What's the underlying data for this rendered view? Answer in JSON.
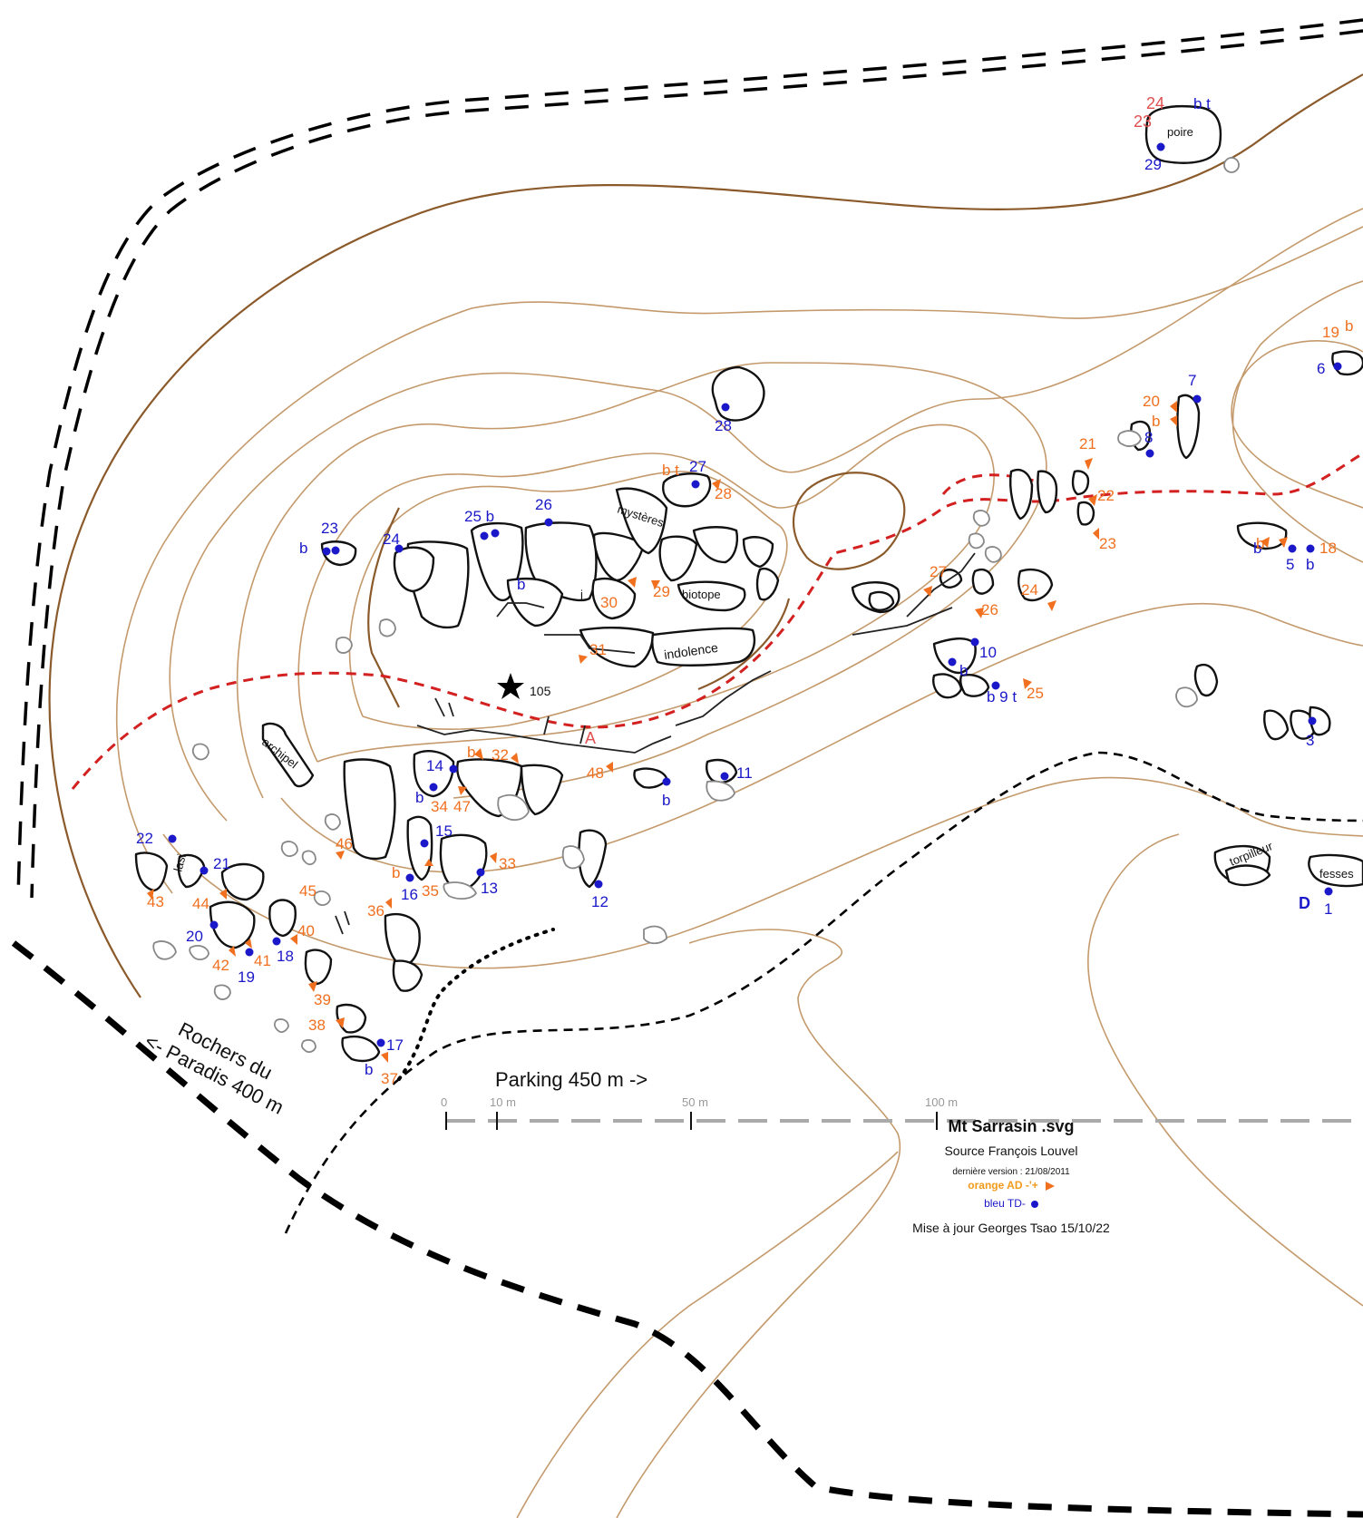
{
  "map": {
    "title": "Mt Sarrasin .svg",
    "source": "Source François Louvel",
    "version": "dernière version : 21/08/2011",
    "legend_orange": "orange AD -'+",
    "legend_blue": "bleu TD-",
    "update": "Mise à jour Georges Tsao 15/10/22",
    "colors": {
      "orange": "#f07020",
      "blue": "#1a18c8",
      "trail_red": "#d32020",
      "contour": "#c49a6c",
      "contour_main": "#8b5a2b"
    }
  },
  "directions": {
    "rochers_line1": "Rochers du",
    "rochers_line2": "<- Paradis 400 m",
    "parking": "Parking 450 m ->"
  },
  "scale": {
    "t0": "0",
    "t10": "10 m",
    "t50": "50 m",
    "t100": "100 m"
  },
  "summit": {
    "label": "105",
    "icon": "star-icon"
  },
  "marker_a": "A",
  "marker_d": "D",
  "rock_names": {
    "poire": "poire",
    "mysteres": "mystères",
    "biotope": "biotope",
    "indolence": "indolence",
    "archipel": "archipel",
    "lasi": "lasi",
    "fesses": "fesses",
    "torpilleur": "torpilleur",
    "j": "j"
  },
  "blue_labels": [
    {
      "id": "b29",
      "text": "29"
    },
    {
      "id": "bt_poire",
      "text": "b t"
    },
    {
      "id": "b28",
      "text": "28"
    },
    {
      "id": "b27",
      "text": "27"
    },
    {
      "id": "b26",
      "text": "26"
    },
    {
      "id": "b25",
      "text": "25 b"
    },
    {
      "id": "b24",
      "text": "24"
    },
    {
      "id": "b23",
      "text": "23"
    },
    {
      "id": "b23b",
      "text": "b"
    },
    {
      "id": "b7",
      "text": "7"
    },
    {
      "id": "b8",
      "text": "8"
    },
    {
      "id": "b6",
      "text": "6"
    },
    {
      "id": "b10",
      "text": "10"
    },
    {
      "id": "b10b",
      "text": "b"
    },
    {
      "id": "b9",
      "text": "b 9 t"
    },
    {
      "id": "b3",
      "text": "3"
    },
    {
      "id": "b5",
      "text": "5"
    },
    {
      "id": "b5b",
      "text": "b"
    },
    {
      "id": "b5bb",
      "text": "b"
    },
    {
      "id": "b1",
      "text": "1"
    },
    {
      "id": "b11",
      "text": "11"
    },
    {
      "id": "b11b",
      "text": "b"
    },
    {
      "id": "b12",
      "text": "12"
    },
    {
      "id": "b13",
      "text": "13"
    },
    {
      "id": "b14",
      "text": "14"
    },
    {
      "id": "b14b",
      "text": "b"
    },
    {
      "id": "b15",
      "text": "15"
    },
    {
      "id": "b16",
      "text": "16"
    },
    {
      "id": "b17",
      "text": "17"
    },
    {
      "id": "b17b",
      "text": "b"
    },
    {
      "id": "b18",
      "text": "18"
    },
    {
      "id": "b19",
      "text": "19"
    },
    {
      "id": "b20",
      "text": "20"
    },
    {
      "id": "b21",
      "text": "21"
    },
    {
      "id": "b22",
      "text": "22"
    },
    {
      "id": "b_mini",
      "text": "b"
    }
  ],
  "orange_labels": [
    {
      "id": "o28",
      "text": "28"
    },
    {
      "id": "obt",
      "text": "b t"
    },
    {
      "id": "o29",
      "text": "29"
    },
    {
      "id": "o30",
      "text": "30"
    },
    {
      "id": "o31",
      "text": "31"
    },
    {
      "id": "o27",
      "text": "27"
    },
    {
      "id": "o26",
      "text": "26"
    },
    {
      "id": "o25",
      "text": "25"
    },
    {
      "id": "o24",
      "text": "24"
    },
    {
      "id": "o23",
      "text": "23"
    },
    {
      "id": "o22",
      "text": "22"
    },
    {
      "id": "o21",
      "text": "21"
    },
    {
      "id": "o20",
      "text": "20"
    },
    {
      "id": "o20b",
      "text": "b"
    },
    {
      "id": "o19",
      "text": "19"
    },
    {
      "id": "o19b",
      "text": "b"
    },
    {
      "id": "o18",
      "text": "18"
    },
    {
      "id": "o18b",
      "text": "b"
    },
    {
      "id": "o32",
      "text": "32"
    },
    {
      "id": "o32b",
      "text": "b"
    },
    {
      "id": "o48",
      "text": "48"
    },
    {
      "id": "o34",
      "text": "34"
    },
    {
      "id": "o47",
      "text": "47"
    },
    {
      "id": "o33",
      "text": "33"
    },
    {
      "id": "o35",
      "text": "35"
    },
    {
      "id": "o35b",
      "text": "b"
    },
    {
      "id": "o46",
      "text": "46"
    },
    {
      "id": "o45",
      "text": "45"
    },
    {
      "id": "o44",
      "text": "44"
    },
    {
      "id": "o43",
      "text": "43"
    },
    {
      "id": "o36",
      "text": "36"
    },
    {
      "id": "o40",
      "text": "40"
    },
    {
      "id": "o39",
      "text": "39"
    },
    {
      "id": "o38",
      "text": "38"
    },
    {
      "id": "o37",
      "text": "37"
    },
    {
      "id": "o41",
      "text": "41"
    },
    {
      "id": "o42",
      "text": "42"
    }
  ],
  "poire_small": {
    "n24": "24",
    "n23": "23"
  }
}
